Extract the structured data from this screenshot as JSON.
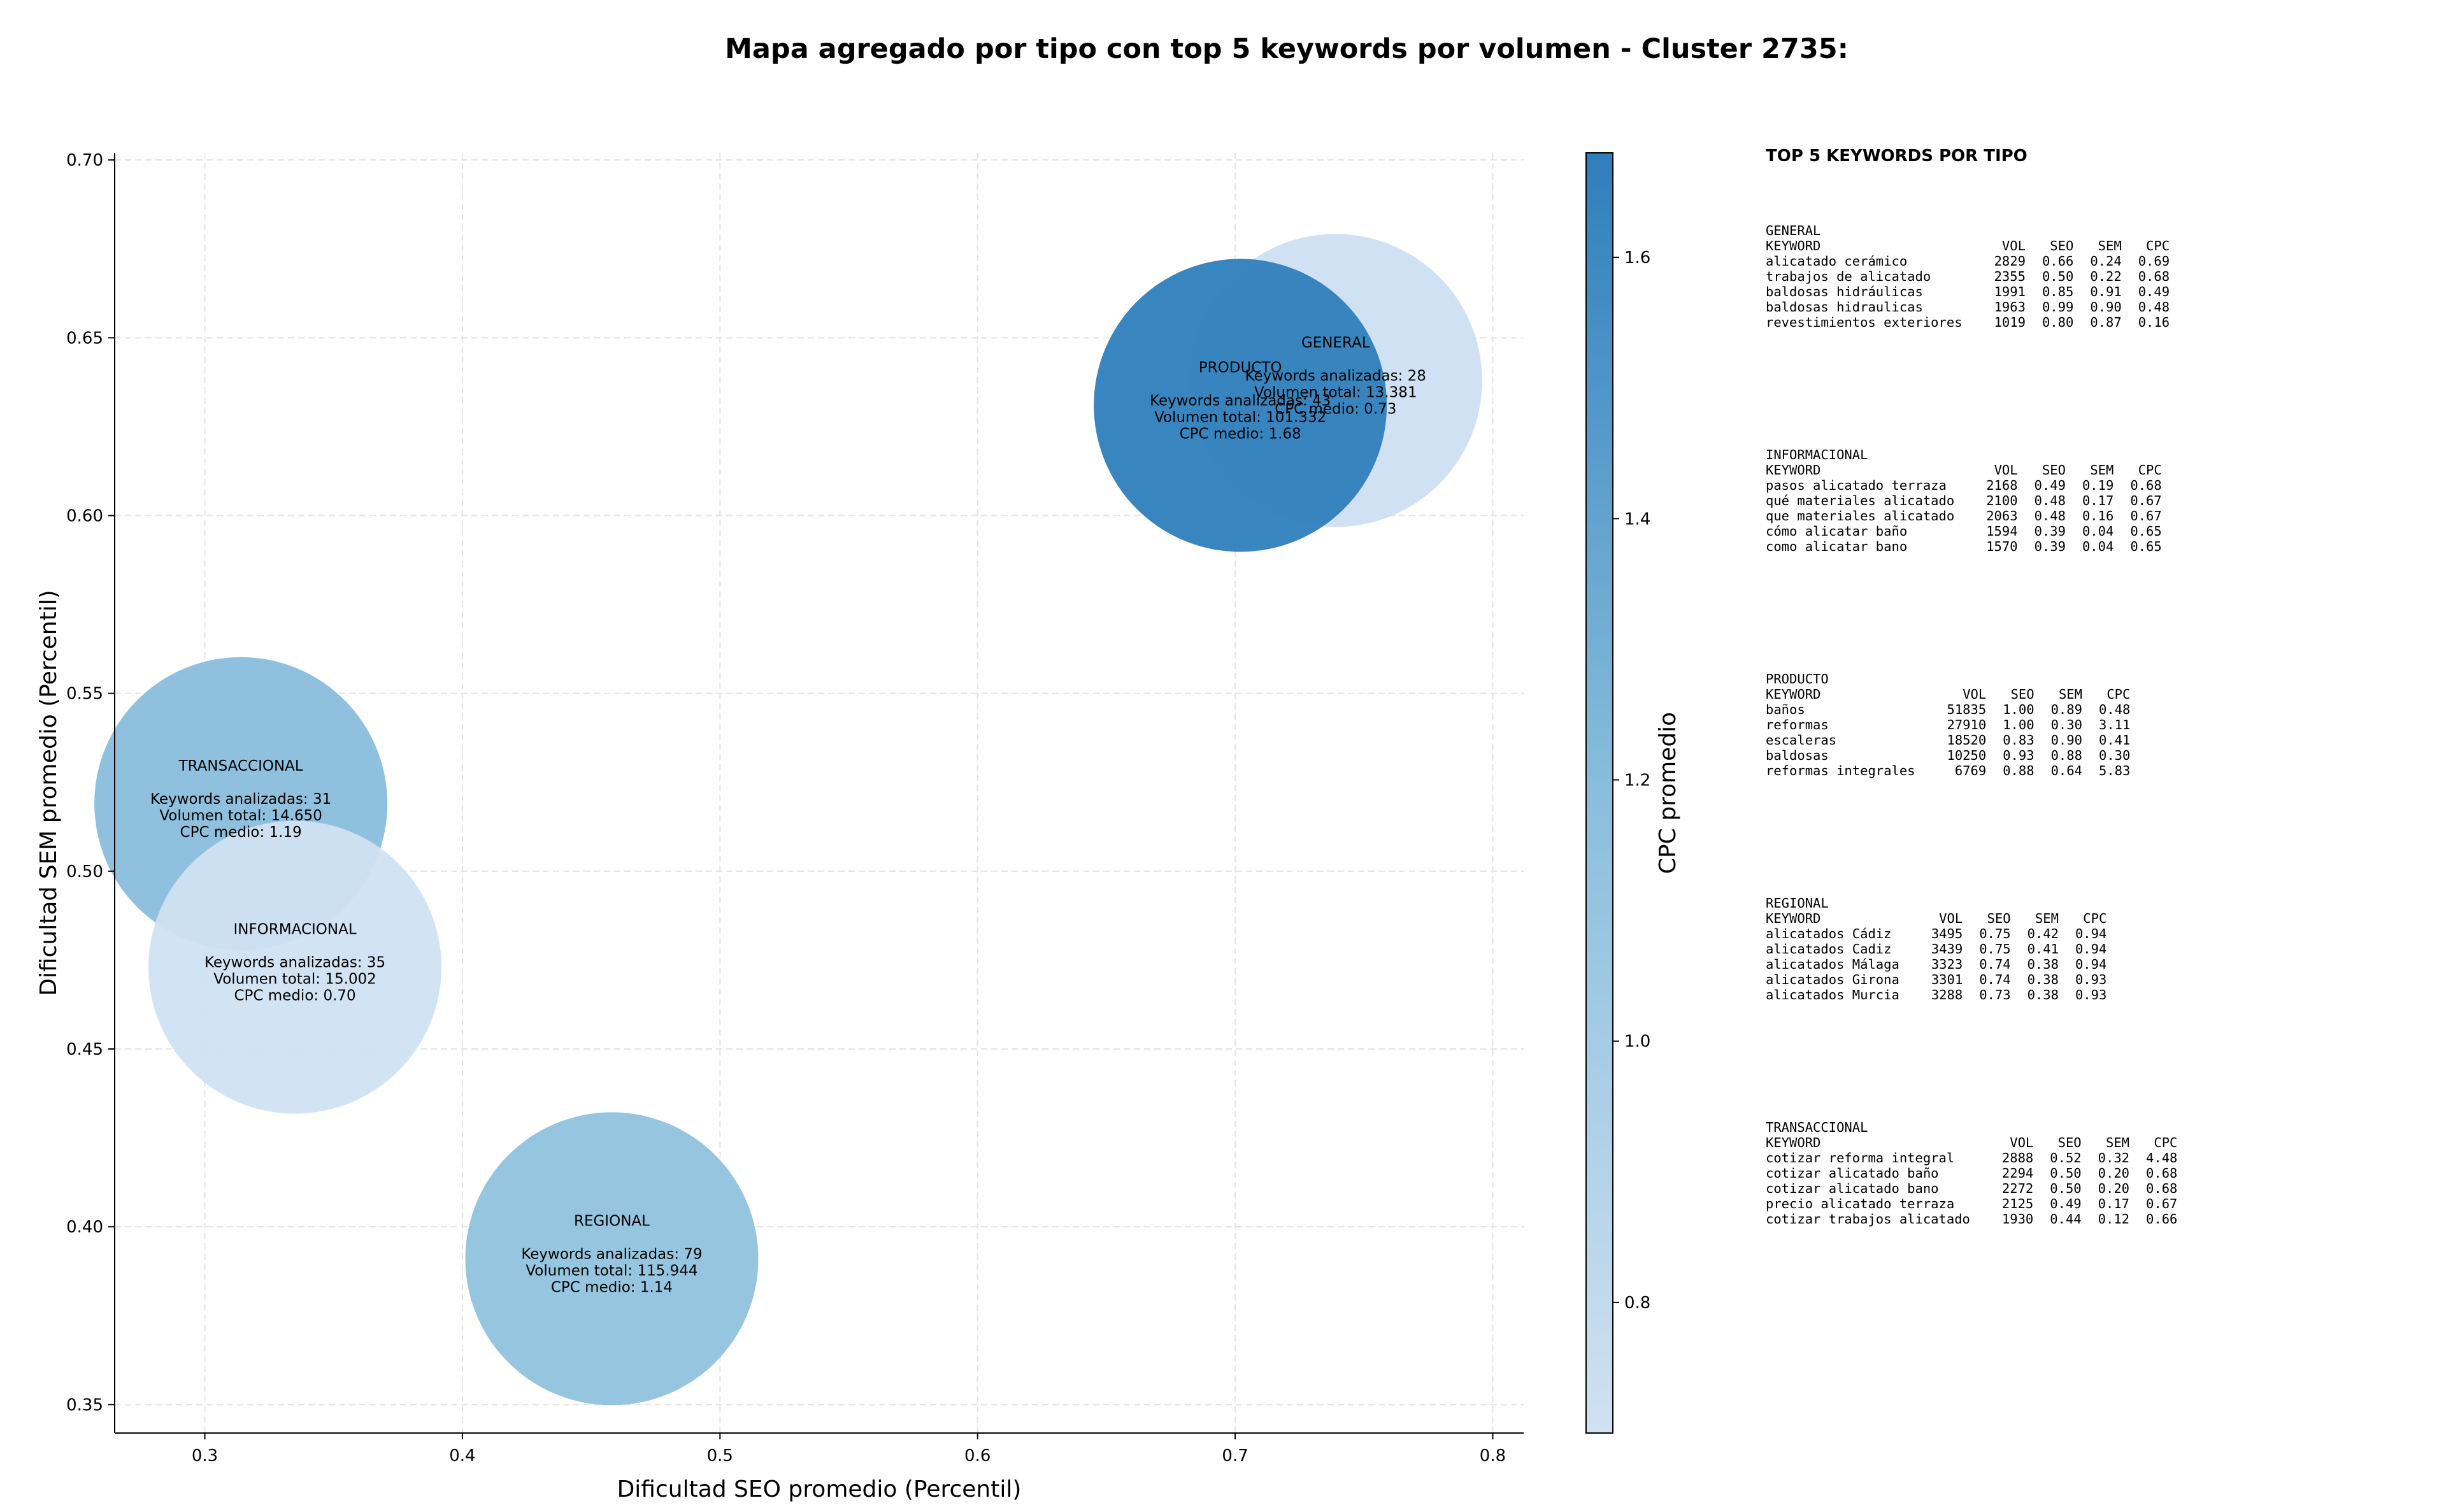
{
  "chart_data": {
    "type": "scatter",
    "title": "Mapa agregado por tipo con top 5 keywords por volumen - Cluster 2735:",
    "xlabel": "Dificultad SEO promedio (Percentil)",
    "ylabel": "Dificultad SEM promedio (Percentil)",
    "xlim": [
      0.265,
      0.812
    ],
    "ylim": [
      0.342,
      0.702
    ],
    "xticks": [
      0.3,
      0.4,
      0.5,
      0.6,
      0.7,
      0.8
    ],
    "yticks": [
      0.35,
      0.4,
      0.45,
      0.5,
      0.55,
      0.6,
      0.65,
      0.7
    ],
    "xtick_labels": [
      "0.3",
      "0.4",
      "0.5",
      "0.6",
      "0.7",
      "0.8"
    ],
    "ytick_labels": [
      "0.35",
      "0.40",
      "0.45",
      "0.50",
      "0.55",
      "0.60",
      "0.65",
      "0.70"
    ],
    "grid": true,
    "colorbar": {
      "label": "CPC promedio",
      "min": 0.7,
      "max": 1.68,
      "ticks": [
        0.8,
        1.0,
        1.2,
        1.4,
        1.6
      ],
      "tick_labels": [
        "0.8",
        "1.0",
        "1.2",
        "1.4",
        "1.6"
      ],
      "color_low": "#d0e1f2",
      "color_high": "#2e7ebc"
    },
    "points": [
      {
        "name": "GENERAL",
        "x": 0.739,
        "y": 0.638,
        "cpc": 0.73,
        "keywords": 28,
        "line1": "Keywords analizadas: 28",
        "line2": "Volumen total: 13.381",
        "line3": "CPC medio: 0.73"
      },
      {
        "name": "PRODUCTO",
        "x": 0.702,
        "y": 0.631,
        "cpc": 1.68,
        "keywords": 43,
        "line1": "Keywords analizadas: 43",
        "line2": "Volumen total: 101.332",
        "line3": "CPC medio: 1.68"
      },
      {
        "name": "TRANSACCIONAL",
        "x": 0.314,
        "y": 0.519,
        "cpc": 1.19,
        "keywords": 31,
        "line1": "Keywords analizadas: 31",
        "line2": "Volumen total: 14.650",
        "line3": "CPC medio: 1.19"
      },
      {
        "name": "INFORMACIONAL",
        "x": 0.335,
        "y": 0.473,
        "cpc": 0.7,
        "keywords": 35,
        "line1": "Keywords analizadas: 35",
        "line2": "Volumen total: 15.002",
        "line3": "CPC medio: 0.70"
      },
      {
        "name": "REGIONAL",
        "x": 0.458,
        "y": 0.391,
        "cpc": 1.14,
        "keywords": 79,
        "line1": "Keywords analizadas: 79",
        "line2": "Volumen total: 115.944",
        "line3": "CPC medio: 1.14"
      }
    ]
  },
  "side_panel": {
    "title": "TOP 5 KEYWORDS POR TIPO",
    "header_label": "KEYWORD",
    "columns": [
      "VOL",
      "SEO",
      "SEM",
      "CPC"
    ],
    "groups": [
      {
        "name": "GENERAL",
        "rows": [
          [
            "alicatado cerámico",
            "2829",
            "0.66",
            "0.24",
            "0.69"
          ],
          [
            "trabajos de alicatado",
            "2355",
            "0.50",
            "0.22",
            "0.68"
          ],
          [
            "baldosas hidráulicas",
            "1991",
            "0.85",
            "0.91",
            "0.49"
          ],
          [
            "baldosas hidraulicas",
            "1963",
            "0.99",
            "0.90",
            "0.48"
          ],
          [
            "revestimientos exteriores",
            "1019",
            "0.80",
            "0.87",
            "0.16"
          ]
        ]
      },
      {
        "name": "INFORMACIONAL",
        "rows": [
          [
            "pasos alicatado terraza",
            "2168",
            "0.49",
            "0.19",
            "0.68"
          ],
          [
            "qué materiales alicatado",
            "2100",
            "0.48",
            "0.17",
            "0.67"
          ],
          [
            "que materiales alicatado",
            "2063",
            "0.48",
            "0.16",
            "0.67"
          ],
          [
            "cómo alicatar baño",
            "1594",
            "0.39",
            "0.04",
            "0.65"
          ],
          [
            "como alicatar bano",
            "1570",
            "0.39",
            "0.04",
            "0.65"
          ]
        ]
      },
      {
        "name": "PRODUCTO",
        "rows": [
          [
            "baños",
            "51835",
            "1.00",
            "0.89",
            "0.48"
          ],
          [
            "reformas",
            "27910",
            "1.00",
            "0.30",
            "3.11"
          ],
          [
            "escaleras",
            "18520",
            "0.83",
            "0.90",
            "0.41"
          ],
          [
            "baldosas",
            "10250",
            "0.93",
            "0.88",
            "0.30"
          ],
          [
            "reformas integrales",
            "6769",
            "0.88",
            "0.64",
            "5.83"
          ]
        ]
      },
      {
        "name": "REGIONAL",
        "rows": [
          [
            "alicatados Cádiz",
            "3495",
            "0.75",
            "0.42",
            "0.94"
          ],
          [
            "alicatados Cadiz",
            "3439",
            "0.75",
            "0.41",
            "0.94"
          ],
          [
            "alicatados Málaga",
            "3323",
            "0.74",
            "0.38",
            "0.94"
          ],
          [
            "alicatados Girona",
            "3301",
            "0.74",
            "0.38",
            "0.93"
          ],
          [
            "alicatados Murcia",
            "3288",
            "0.73",
            "0.38",
            "0.93"
          ]
        ]
      },
      {
        "name": "TRANSACCIONAL",
        "rows": [
          [
            "cotizar reforma integral",
            "2888",
            "0.52",
            "0.32",
            "4.48"
          ],
          [
            "cotizar alicatado baño",
            "2294",
            "0.50",
            "0.20",
            "0.68"
          ],
          [
            "cotizar alicatado bano",
            "2272",
            "0.50",
            "0.20",
            "0.68"
          ],
          [
            "precio alicatado terraza",
            "2125",
            "0.49",
            "0.17",
            "0.67"
          ],
          [
            "cotizar trabajos alicatado",
            "1930",
            "0.44",
            "0.12",
            "0.66"
          ]
        ]
      }
    ]
  }
}
